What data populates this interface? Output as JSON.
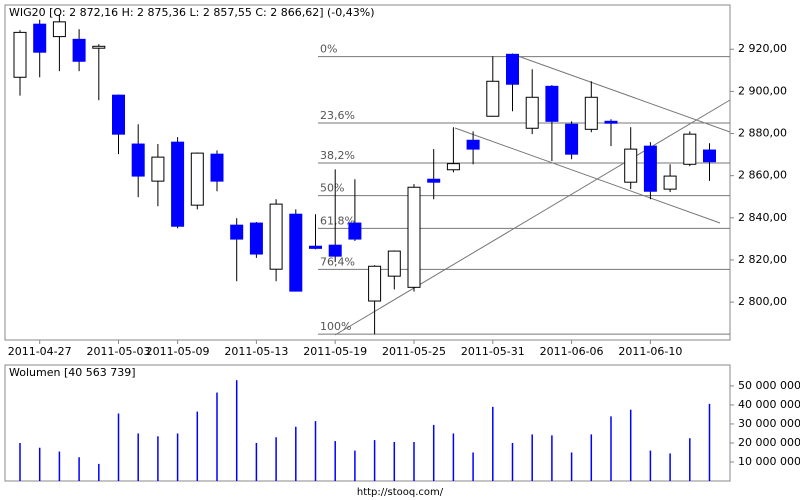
{
  "chart_data": [
    {
      "type": "candlestick",
      "title": "WIG20 [O: 2 872,16  H: 2 875,36  L: 2 857,55  C: 2 866,62] (-0,43%)",
      "categories": [
        null,
        "2011-04-27",
        null,
        null,
        null,
        "2011-05-03",
        null,
        null,
        "2011-05-09",
        null,
        null,
        null,
        "2011-05-13",
        null,
        null,
        null,
        "2011-05-19",
        null,
        null,
        null,
        "2011-05-25",
        null,
        null,
        null,
        "2011-05-31",
        null,
        null,
        null,
        "2011-06-06",
        null,
        null,
        null,
        "2011-06-10",
        null,
        null,
        null
      ],
      "open": [
        2906.7,
        2931.9,
        2926,
        2924.7,
        2920.5,
        2898.2,
        2875,
        2857.4,
        2875.9,
        2846,
        2870.2,
        2836.5,
        2837.5,
        2815.6,
        2841.7,
        2826.5,
        2827,
        2837.5,
        2800.5,
        2812.3,
        2807,
        2858.3,
        2862.8,
        2876.8,
        2888.2,
        2917.6,
        2882.5,
        2902.4,
        2884.4,
        2882,
        2885.8,
        2856.9,
        2874,
        2853.6,
        2865.4,
        2872.16
      ],
      "high": [
        2929,
        2934,
        2936.6,
        2929.5,
        2922.4,
        2898.5,
        2884.4,
        2875,
        2878.3,
        2871,
        2872,
        2839.8,
        2838,
        2848.8,
        2844,
        2841.7,
        2863,
        2858.3,
        2817.5,
        2824.5,
        2856,
        2872.6,
        2883,
        2881,
        2916.7,
        2918,
        2910.5,
        2903,
        2885.8,
        2904.8,
        2886.8,
        2883,
        2875.9,
        2865.4,
        2881,
        2875.36
      ],
      "low": [
        2898,
        2906.7,
        2909.6,
        2909.6,
        2895.8,
        2870.2,
        2849.8,
        2845.5,
        2835,
        2844,
        2852.6,
        2809.9,
        2821,
        2809.9,
        2805,
        2825,
        2819,
        2829,
        2784.8,
        2806,
        2805,
        2848.8,
        2861.6,
        2865.4,
        2888,
        2890.6,
        2879.7,
        2866.9,
        2867.8,
        2880.6,
        2874,
        2853.6,
        2848.8,
        2852.2,
        2864.5,
        2857.55
      ],
      "close": [
        2928,
        2918.6,
        2933,
        2914.3,
        2921.4,
        2879.7,
        2859.8,
        2868.8,
        2836,
        2870.7,
        2857.4,
        2829.9,
        2822.8,
        2846.5,
        2805.2,
        2825.5,
        2821.8,
        2829.9,
        2817,
        2824.2,
        2854.5,
        2856.9,
        2865.7,
        2872.6,
        2904.8,
        2903.4,
        2897.2,
        2885.8,
        2870.2,
        2897.2,
        2884.9,
        2872.6,
        2852.6,
        2859.8,
        2879.7,
        2866.62
      ],
      "up_color": "#ffffff",
      "down_color": "#0000ff",
      "ylim": [
        2782,
        2941
      ],
      "yticks": [
        {
          "value": 2800,
          "label": "2 800,00"
        },
        {
          "value": 2820,
          "label": "2 820,00"
        },
        {
          "value": 2840,
          "label": "2 840,00"
        },
        {
          "value": 2860,
          "label": "2 860,00"
        },
        {
          "value": 2880,
          "label": "2 880,00"
        },
        {
          "value": 2900,
          "label": "2 900,00"
        },
        {
          "value": 2920,
          "label": "2 920,00"
        }
      ],
      "fibonacci": [
        {
          "label": "0%",
          "value": 2916.5
        },
        {
          "label": "23,6%",
          "value": 2885
        },
        {
          "label": "38,2%",
          "value": 2866
        },
        {
          "label": "50%",
          "value": 2850.5
        },
        {
          "label": "61,8%",
          "value": 2835
        },
        {
          "label": "76,4%",
          "value": 2815.5
        },
        {
          "label": "100%",
          "value": 2784.8
        }
      ]
    },
    {
      "type": "bar",
      "title": "Wolumen [40 563 739]",
      "values": [
        20000000,
        17500000,
        15500000,
        12500000,
        9000000,
        35500000,
        25000000,
        23500000,
        25000000,
        36500000,
        46500000,
        53000000,
        20000000,
        23000000,
        28500000,
        31500000,
        21000000,
        16000000,
        21500000,
        20500000,
        20500000,
        29500000,
        25000000,
        15000000,
        39000000,
        20000000,
        24500000,
        24000000,
        15000000,
        24500000,
        34000000,
        37500000,
        16000000,
        14500000,
        22500000,
        40563739
      ],
      "color": "#0000ff",
      "ylim": [
        0,
        61000000
      ],
      "yticks": [
        {
          "value": 10000000,
          "label": "10 000 000"
        },
        {
          "value": 20000000,
          "label": "20 000 000"
        },
        {
          "value": 30000000,
          "label": "30 000 000"
        },
        {
          "value": 40000000,
          "label": "40 000 000"
        },
        {
          "value": 50000000,
          "label": "50 000 000"
        }
      ]
    }
  ],
  "footer": "http://stooq.com/"
}
